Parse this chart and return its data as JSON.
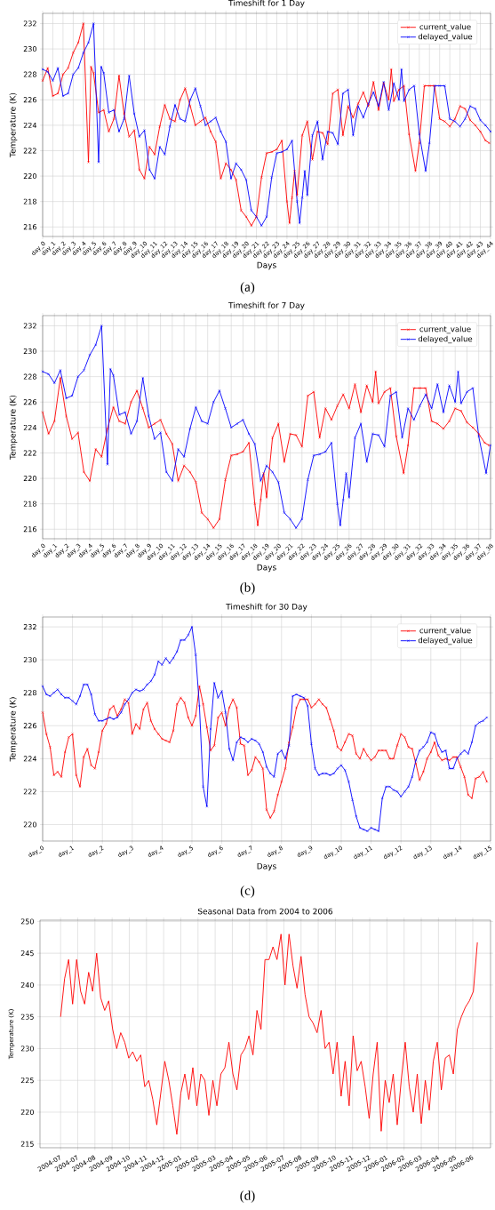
{
  "chart_data": [
    {
      "type": "line",
      "title": "Timeshift for 1 Day",
      "xlabel": "Days",
      "ylabel": "Temperature (K)",
      "grid": true,
      "legend": "top right",
      "marker": "cross",
      "xlim": [
        0,
        44
      ],
      "ylim": [
        215.25,
        232.8
      ],
      "yticks": [
        216,
        218,
        220,
        222,
        224,
        226,
        228,
        230,
        232
      ],
      "xticks": [
        {
          "value": 0,
          "label": "day_0"
        },
        {
          "value": 1,
          "label": "day_1"
        },
        {
          "value": 2,
          "label": "day_2"
        },
        {
          "value": 3,
          "label": "day_3"
        },
        {
          "value": 4,
          "label": "day_4"
        },
        {
          "value": 5,
          "label": "day_5"
        },
        {
          "value": 6,
          "label": "day_6"
        },
        {
          "value": 7,
          "label": "day_7"
        },
        {
          "value": 8,
          "label": "day_8"
        },
        {
          "value": 9,
          "label": "day_9"
        },
        {
          "value": 10,
          "label": "day_10"
        },
        {
          "value": 11,
          "label": "day_11"
        },
        {
          "value": 12,
          "label": "day_12"
        },
        {
          "value": 13,
          "label": "day_13"
        },
        {
          "value": 14,
          "label": "day_14"
        },
        {
          "value": 15,
          "label": "day_15"
        },
        {
          "value": 16,
          "label": "day_16"
        },
        {
          "value": 17,
          "label": "day_17"
        },
        {
          "value": 18,
          "label": "day_18"
        },
        {
          "value": 19,
          "label": "day_19"
        },
        {
          "value": 20,
          "label": "day_20"
        },
        {
          "value": 21,
          "label": "day_21"
        },
        {
          "value": 22,
          "label": "day_22"
        },
        {
          "value": 23,
          "label": "day_23"
        },
        {
          "value": 24,
          "label": "day_24"
        },
        {
          "value": 25,
          "label": "day_25"
        },
        {
          "value": 26,
          "label": "day_26"
        },
        {
          "value": 27,
          "label": "day_27"
        },
        {
          "value": 28,
          "label": "day_28"
        },
        {
          "value": 29,
          "label": "day_29"
        },
        {
          "value": 30,
          "label": "day_30"
        },
        {
          "value": 31,
          "label": "day_31"
        },
        {
          "value": 32,
          "label": "day_32"
        },
        {
          "value": 33,
          "label": "day_33"
        },
        {
          "value": 34,
          "label": "day_34"
        },
        {
          "value": 35,
          "label": "day_35"
        },
        {
          "value": 36,
          "label": "day_36"
        },
        {
          "value": 37,
          "label": "day_37"
        },
        {
          "value": 38,
          "label": "day_38"
        },
        {
          "value": 39,
          "label": "day_39"
        },
        {
          "value": 40,
          "label": "day_40"
        },
        {
          "value": 41,
          "label": "day_41"
        },
        {
          "value": 42,
          "label": "day_42"
        },
        {
          "value": 43,
          "label": "day_43"
        },
        {
          "value": 44,
          "label": "day_44"
        }
      ],
      "series": [
        {
          "name": "current_value",
          "color": "#ff0000",
          "x": [
            0,
            0.5,
            1,
            1.5,
            2,
            2.5,
            3,
            3.5,
            4,
            4.5,
            4.75,
            5,
            5.5,
            6,
            6.5,
            7,
            7.5,
            8,
            8.5,
            9,
            9.5,
            10,
            10.5,
            11,
            11.5,
            12,
            12.5,
            13,
            13.5,
            14,
            14.5,
            15,
            15.5,
            16,
            16.5,
            17,
            17.5,
            18,
            18.5,
            19,
            19.5,
            20,
            20.5,
            21,
            21.5,
            22,
            22.5,
            23,
            23.5,
            24,
            24.25,
            24.5,
            24.75,
            25,
            25.5,
            26,
            26.5,
            27,
            27.5,
            28,
            28.5,
            29,
            29.5,
            30,
            30.5,
            31,
            31.5,
            32,
            32.5,
            33,
            33.5,
            34,
            34.25,
            34.5,
            35,
            35.5,
            36,
            36.625,
            37,
            37.5,
            38,
            38.5,
            39,
            39.5,
            40,
            40.5,
            41,
            41.5,
            42,
            42.5,
            43,
            43.5,
            43.875
          ],
          "values": [
            227.5,
            228.5,
            226.3,
            226.5,
            228.0,
            228.5,
            229.7,
            230.5,
            232.0,
            221.1,
            228.6,
            228.1,
            225.0,
            225.2,
            223.5,
            224.5,
            227.9,
            224.9,
            223.1,
            223.6,
            220.5,
            219.8,
            222.3,
            221.7,
            223.9,
            225.6,
            224.5,
            224.3,
            226.0,
            226.9,
            225.5,
            224.0,
            224.3,
            224.6,
            223.5,
            222.7,
            219.8,
            221.0,
            220.5,
            219.7,
            217.3,
            216.8,
            216.1,
            216.8,
            219.9,
            221.8,
            221.9,
            222.1,
            222.8,
            218.0,
            216.3,
            218.3,
            220.4,
            218.5,
            223.2,
            224.3,
            221.3,
            223.5,
            223.4,
            222.5,
            226.5,
            226.8,
            223.2,
            225.5,
            224.6,
            225.7,
            226.6,
            225.5,
            227.4,
            225.2,
            227.3,
            226.0,
            228.4,
            225.9,
            226.8,
            227.1,
            223.3,
            220.4,
            222.6,
            227.1,
            227.1,
            227.1,
            224.5,
            224.3,
            223.9,
            224.5,
            225.5,
            225.3,
            224.4,
            224.0,
            223.5,
            222.8,
            222.6
          ]
        },
        {
          "name": "delayed_value",
          "color": "#0000ff",
          "x": [
            0,
            0.5,
            1,
            1.5,
            2,
            2.5,
            3,
            3.5,
            4,
            4.5,
            5,
            5.5,
            5.75,
            6,
            6.5,
            7,
            7.5,
            8,
            8.5,
            9,
            9.5,
            10,
            10.5,
            11,
            11.5,
            12,
            12.5,
            13,
            13.5,
            14,
            14.5,
            15,
            15.5,
            16,
            16.5,
            17,
            17.5,
            18,
            18.5,
            19,
            19.5,
            20,
            20.5,
            21,
            21.5,
            22,
            22.5,
            23,
            23.5,
            24,
            24.5,
            25,
            25.25,
            25.5,
            25.75,
            26,
            26.5,
            27,
            27.5,
            28,
            28.5,
            29,
            29.5,
            30,
            30.5,
            31,
            31.5,
            32,
            32.5,
            33,
            33.5,
            34,
            34.5,
            35,
            35.25,
            35.5,
            36,
            36.5,
            37,
            37.625,
            38,
            38.5,
            39,
            39.5,
            40,
            40.5,
            41,
            41.5,
            42,
            42.5,
            43,
            43.5,
            44
          ],
          "values": [
            228.4,
            228.2,
            227.5,
            228.5,
            226.3,
            226.5,
            228.0,
            228.5,
            229.7,
            230.5,
            232.0,
            221.1,
            228.6,
            228.1,
            225.0,
            225.2,
            223.5,
            224.5,
            227.9,
            224.9,
            223.1,
            223.6,
            220.5,
            219.8,
            222.3,
            221.7,
            223.9,
            225.6,
            224.5,
            224.3,
            226.0,
            226.9,
            225.5,
            224.0,
            224.3,
            224.6,
            223.5,
            222.7,
            219.8,
            221.0,
            220.5,
            219.7,
            217.3,
            216.8,
            216.1,
            216.8,
            219.9,
            221.8,
            221.9,
            222.1,
            222.8,
            218.0,
            216.3,
            218.3,
            220.4,
            218.5,
            223.2,
            224.3,
            221.3,
            223.5,
            223.4,
            222.5,
            226.5,
            226.8,
            223.2,
            225.5,
            224.6,
            225.7,
            226.6,
            225.5,
            227.4,
            225.2,
            227.3,
            226.0,
            228.4,
            225.9,
            226.8,
            227.1,
            223.3,
            220.4,
            222.6,
            227.1,
            227.1,
            227.1,
            224.5,
            224.3,
            223.9,
            224.5,
            225.5,
            225.3,
            224.4,
            224.0,
            223.5
          ]
        }
      ],
      "annotations": [
        "(a)"
      ]
    },
    {
      "type": "line",
      "title": "Timeshift for 7 Day",
      "xlabel": "Days",
      "ylabel": "Temperature (K)",
      "grid": true,
      "legend": "top right",
      "marker": "cross",
      "xlim": [
        0,
        38
      ],
      "ylim": [
        215.25,
        232.8
      ],
      "yticks": [
        216,
        218,
        220,
        222,
        224,
        226,
        228,
        230,
        232
      ],
      "xticks": [
        {
          "value": 0,
          "label": "day_0"
        },
        {
          "value": 1,
          "label": "day_1"
        },
        {
          "value": 2,
          "label": "day_2"
        },
        {
          "value": 3,
          "label": "day_3"
        },
        {
          "value": 4,
          "label": "day_4"
        },
        {
          "value": 5,
          "label": "day_5"
        },
        {
          "value": 6,
          "label": "day_6"
        },
        {
          "value": 7,
          "label": "day_7"
        },
        {
          "value": 8,
          "label": "day_8"
        },
        {
          "value": 9,
          "label": "day_9"
        },
        {
          "value": 10,
          "label": "day_10"
        },
        {
          "value": 11,
          "label": "day_11"
        },
        {
          "value": 12,
          "label": "day_12"
        },
        {
          "value": 13,
          "label": "day_13"
        },
        {
          "value": 14,
          "label": "day_14"
        },
        {
          "value": 15,
          "label": "day_15"
        },
        {
          "value": 16,
          "label": "day_16"
        },
        {
          "value": 17,
          "label": "day_17"
        },
        {
          "value": 18,
          "label": "day_18"
        },
        {
          "value": 19,
          "label": "day_19"
        },
        {
          "value": 20,
          "label": "day_20"
        },
        {
          "value": 21,
          "label": "day_21"
        },
        {
          "value": 22,
          "label": "day_22"
        },
        {
          "value": 23,
          "label": "day_23"
        },
        {
          "value": 24,
          "label": "day_24"
        },
        {
          "value": 25,
          "label": "day_25"
        },
        {
          "value": 26,
          "label": "day_26"
        },
        {
          "value": 27,
          "label": "day_27"
        },
        {
          "value": 28,
          "label": "day_28"
        },
        {
          "value": 29,
          "label": "day_29"
        },
        {
          "value": 30,
          "label": "day_30"
        },
        {
          "value": 31,
          "label": "day_31"
        },
        {
          "value": 32,
          "label": "day_32"
        },
        {
          "value": 33,
          "label": "day_33"
        },
        {
          "value": 34,
          "label": "day_34"
        },
        {
          "value": 35,
          "label": "day_35"
        },
        {
          "value": 36,
          "label": "day_36"
        },
        {
          "value": 37,
          "label": "day_37"
        },
        {
          "value": 38,
          "label": "day_38"
        }
      ],
      "series": [
        {
          "name": "current_value",
          "color": "#ff0000",
          "x": [
            0,
            0.5,
            1,
            1.5,
            2,
            2.5,
            3,
            3.5,
            4,
            4.5,
            5,
            5.5,
            6,
            6.5,
            7,
            7.5,
            8,
            8.5,
            9,
            9.5,
            10,
            10.5,
            11,
            11.5,
            12,
            12.5,
            13,
            13.5,
            14,
            14.5,
            15,
            15.5,
            16,
            16.5,
            17,
            17.5,
            18,
            18.25,
            18.5,
            18.75,
            19,
            19.5,
            20,
            20.5,
            21,
            21.5,
            22,
            22.5,
            23,
            23.5,
            24,
            24.5,
            25,
            25.5,
            26,
            26.5,
            27,
            27.5,
            28,
            28.25,
            28.5,
            29,
            29.5,
            30,
            30.625,
            31,
            31.5,
            32,
            32.5,
            33,
            33.5,
            34,
            34.5,
            35,
            35.5,
            36,
            36.5,
            37,
            37.5,
            37.875
          ],
          "values": [
            225.2,
            223.5,
            224.5,
            227.9,
            224.9,
            223.1,
            223.6,
            220.5,
            219.8,
            222.3,
            221.7,
            223.9,
            225.6,
            224.5,
            224.3,
            226.0,
            226.9,
            225.5,
            224.0,
            224.3,
            224.6,
            223.5,
            222.7,
            219.8,
            221.0,
            220.5,
            219.7,
            217.3,
            216.8,
            216.1,
            216.8,
            219.9,
            221.8,
            221.9,
            222.1,
            222.8,
            218.0,
            216.3,
            218.3,
            220.4,
            218.5,
            223.2,
            224.3,
            221.3,
            223.5,
            223.4,
            222.5,
            226.5,
            226.8,
            223.2,
            225.5,
            224.6,
            225.7,
            226.6,
            225.5,
            227.4,
            225.2,
            227.3,
            226.0,
            228.4,
            225.9,
            226.8,
            227.1,
            223.3,
            220.4,
            222.6,
            227.1,
            227.1,
            227.1,
            224.5,
            224.3,
            223.9,
            224.5,
            225.5,
            225.3,
            224.4,
            224.0,
            223.5,
            222.8,
            222.6
          ]
        },
        {
          "name": "delayed_value",
          "color": "#0000ff",
          "x": [
            0,
            0.5,
            1,
            1.5,
            2,
            2.5,
            3,
            3.5,
            4,
            4.5,
            5,
            5.5,
            5.75,
            6,
            6.5,
            7,
            7.5,
            8,
            8.5,
            9,
            9.5,
            10,
            10.5,
            11,
            11.5,
            12,
            12.5,
            13,
            13.5,
            14,
            14.5,
            15,
            15.5,
            16,
            16.5,
            17,
            17.5,
            18,
            18.5,
            19,
            19.5,
            20,
            20.5,
            21,
            21.5,
            22,
            22.5,
            23,
            23.5,
            24,
            24.5,
            25,
            25.25,
            25.5,
            25.75,
            26,
            26.5,
            27,
            27.5,
            28,
            28.5,
            29,
            29.5,
            30,
            30.5,
            31,
            31.5,
            32,
            32.5,
            33,
            33.5,
            34,
            34.5,
            35,
            35.25,
            35.5,
            36,
            36.5,
            37,
            37.625,
            38
          ],
          "values": [
            228.4,
            228.2,
            227.5,
            228.5,
            226.3,
            226.5,
            228.0,
            228.5,
            229.7,
            230.5,
            232.0,
            221.1,
            228.6,
            228.1,
            225.0,
            225.2,
            223.5,
            224.5,
            227.9,
            224.9,
            223.1,
            223.6,
            220.5,
            219.8,
            222.3,
            221.7,
            223.9,
            225.6,
            224.5,
            224.3,
            226.0,
            226.9,
            225.5,
            224.0,
            224.3,
            224.6,
            223.5,
            222.7,
            219.8,
            221.0,
            220.5,
            219.7,
            217.3,
            216.8,
            216.1,
            216.8,
            219.9,
            221.8,
            221.9,
            222.1,
            222.8,
            218.0,
            216.3,
            218.3,
            220.4,
            218.5,
            223.2,
            224.3,
            221.3,
            223.5,
            223.4,
            222.5,
            226.5,
            226.8,
            223.2,
            225.5,
            224.6,
            225.7,
            226.6,
            225.5,
            227.4,
            225.2,
            227.3,
            226.0,
            228.4,
            225.9,
            226.8,
            227.1,
            223.3,
            220.4,
            222.6
          ]
        }
      ],
      "annotations": [
        "(b)"
      ]
    },
    {
      "type": "line",
      "title": "Timeshift for 30 Day",
      "xlabel": "Days",
      "ylabel": "Temperature (K)",
      "grid": true,
      "legend": "top right",
      "marker": "cross",
      "xlim": [
        0,
        15
      ],
      "ylim": [
        219.0,
        232.6
      ],
      "yticks": [
        220,
        222,
        224,
        226,
        228,
        230,
        232
      ],
      "xticks": [
        {
          "value": 0,
          "label": "day_0"
        },
        {
          "value": 1,
          "label": "day_1"
        },
        {
          "value": 2,
          "label": "day_2"
        },
        {
          "value": 3,
          "label": "day_3"
        },
        {
          "value": 4,
          "label": "day_4"
        },
        {
          "value": 5,
          "label": "day_5"
        },
        {
          "value": 6,
          "label": "day_6"
        },
        {
          "value": 7,
          "label": "day_7"
        },
        {
          "value": 8,
          "label": "day_8"
        },
        {
          "value": 9,
          "label": "day_9"
        },
        {
          "value": 10,
          "label": "day_10"
        },
        {
          "value": 11,
          "label": "day_11"
        },
        {
          "value": 12,
          "label": "day_12"
        },
        {
          "value": 13,
          "label": "day_13"
        },
        {
          "value": 14,
          "label": "day_14"
        },
        {
          "value": 15,
          "label": "day_15"
        }
      ],
      "x": [
        0,
        0.125,
        0.25,
        0.375,
        0.5,
        0.625,
        0.75,
        0.875,
        1,
        1.125,
        1.25,
        1.375,
        1.5,
        1.625,
        1.75,
        1.875,
        2,
        2.125,
        2.25,
        2.375,
        2.5,
        2.625,
        2.75,
        2.875,
        3,
        3.125,
        3.25,
        3.375,
        3.5,
        3.625,
        3.75,
        3.875,
        4,
        4.125,
        4.25,
        4.375,
        4.5,
        4.625,
        4.75,
        4.875,
        5,
        5.125,
        5.25,
        5.375,
        5.5,
        5.625,
        5.75,
        5.875,
        6,
        6.125,
        6.25,
        6.375,
        6.5,
        6.625,
        6.75,
        6.875,
        7,
        7.125,
        7.25,
        7.375,
        7.5,
        7.625,
        7.75,
        7.875,
        8,
        8.125,
        8.25,
        8.375,
        8.5,
        8.625,
        8.75,
        8.875,
        9,
        9.125,
        9.25,
        9.375,
        9.5,
        9.625,
        9.75,
        9.875,
        10,
        10.125,
        10.25,
        10.375,
        10.5,
        10.625,
        10.75,
        10.875,
        11,
        11.125,
        11.25,
        11.375,
        11.5,
        11.625,
        11.75,
        11.875,
        12,
        12.125,
        12.25,
        12.375,
        12.5,
        12.625,
        12.75,
        12.875,
        13,
        13.125,
        13.25,
        13.375,
        13.5,
        13.625,
        13.75,
        13.875,
        14,
        14.125,
        14.25,
        14.375,
        14.5,
        14.625,
        14.75,
        14.875
      ],
      "series": [
        {
          "name": "current_value",
          "color": "#ff0000",
          "values": [
            226.8,
            225.5,
            224.7,
            223.0,
            223.2,
            222.9,
            224.4,
            225.3,
            225.5,
            223.0,
            222.3,
            224.1,
            224.6,
            223.6,
            223.4,
            224.4,
            225.7,
            226.1,
            227.0,
            227.2,
            226.6,
            227.0,
            227.6,
            227.4,
            225.5,
            226.1,
            225.8,
            227.0,
            227.4,
            226.3,
            225.8,
            225.5,
            225.2,
            225.1,
            225.0,
            225.7,
            227.3,
            227.7,
            227.4,
            226.5,
            226.0,
            226.6,
            228.4,
            227.3,
            225.9,
            224.5,
            224.8,
            226.5,
            226.8,
            226.0,
            227.1,
            227.6,
            227.1,
            224.9,
            224.8,
            223.0,
            223.3,
            224.1,
            223.8,
            223.4,
            220.9,
            220.4,
            220.8,
            221.8,
            222.6,
            223.4,
            225.0,
            225.9,
            227.1,
            227.6,
            227.6,
            227.6,
            227.1,
            227.3,
            227.6,
            227.3,
            227.1,
            226.4,
            225.7,
            224.7,
            224.5,
            225.0,
            225.5,
            225.4,
            224.3,
            224.0,
            224.6,
            224.2,
            223.9,
            224.1,
            224.5,
            224.5,
            224.5,
            224.0,
            224.0,
            224.8,
            225.5,
            225.3,
            224.7,
            224.6,
            223.7,
            222.7,
            223.2,
            224.0,
            224.4,
            225.0,
            224.2,
            223.9,
            224.0,
            223.9,
            224.1,
            224.1,
            223.5,
            222.9,
            221.8,
            221.6,
            222.8,
            222.9,
            223.2,
            222.6
          ]
        },
        {
          "name": "delayed_value",
          "color": "#0000ff",
          "values": [
            228.4,
            227.9,
            227.8,
            228.0,
            228.2,
            227.9,
            227.7,
            227.7,
            227.5,
            227.3,
            227.8,
            228.5,
            228.5,
            227.9,
            226.7,
            226.3,
            226.3,
            226.4,
            226.5,
            226.4,
            226.5,
            226.8,
            227.3,
            227.6,
            228.0,
            228.2,
            228.1,
            228.2,
            228.5,
            228.7,
            229.1,
            229.9,
            229.7,
            230.1,
            229.8,
            230.1,
            230.5,
            231.2,
            231.2,
            231.5,
            232.0,
            230.3,
            227.2,
            222.3,
            221.1,
            225.8,
            228.6,
            227.7,
            228.1,
            226.8,
            224.6,
            223.9,
            225.0,
            225.3,
            225.2,
            225.0,
            225.2,
            225.1,
            224.9,
            224.4,
            223.5,
            223.1,
            222.9,
            224.3,
            224.5,
            224.0,
            224.8,
            227.8,
            227.9,
            227.8,
            227.7,
            227.2,
            224.9,
            223.4,
            223.0,
            223.1,
            223.1,
            223.0,
            223.1,
            223.4,
            223.6,
            223.3,
            222.6,
            221.5,
            220.5,
            219.8,
            219.7,
            219.6,
            219.8,
            219.7,
            219.6,
            221.6,
            222.3,
            222.3,
            222.1,
            222.0,
            221.7,
            222.0,
            222.3,
            222.9,
            223.9,
            224.5,
            224.7,
            225.0,
            225.6,
            225.5,
            224.8,
            224.4,
            224.5,
            223.4,
            223.4,
            224.0,
            224.3,
            224.5,
            224.3,
            225.0,
            226.0,
            226.2,
            226.3,
            226.5
          ]
        }
      ],
      "annotations": [
        "(c)"
      ]
    },
    {
      "type": "line",
      "title": "Seasonal Data from 2004 to 2006",
      "ylabel": "Temperature (K)",
      "grid": true,
      "xlim": [
        "2004-05-26",
        "2006-07-22"
      ],
      "ylim": [
        214.4,
        250.2
      ],
      "yticks": [
        215,
        220,
        225,
        230,
        235,
        240,
        245,
        250
      ],
      "xticks": [
        {
          "value": "2004-07-01",
          "label": "2004-07"
        },
        {
          "value": "2004-07-31",
          "label": "2004-07"
        },
        {
          "value": "2004-08-30",
          "label": "2004-08"
        },
        {
          "value": "2004-09-29",
          "label": "2004-09"
        },
        {
          "value": "2004-10-29",
          "label": "2004-10"
        },
        {
          "value": "2004-11-28",
          "label": "2004-11"
        },
        {
          "value": "2004-12-28",
          "label": "2004-12"
        },
        {
          "value": "2005-01-27",
          "label": "2005-01"
        },
        {
          "value": "2005-02-26",
          "label": "2005-02"
        },
        {
          "value": "2005-03-28",
          "label": "2005-03"
        },
        {
          "value": "2005-04-27",
          "label": "2005-04"
        },
        {
          "value": "2005-05-27",
          "label": "2005-05"
        },
        {
          "value": "2005-06-26",
          "label": "2005-06"
        },
        {
          "value": "2005-07-26",
          "label": "2005-07"
        },
        {
          "value": "2005-08-25",
          "label": "2005-08"
        },
        {
          "value": "2005-09-24",
          "label": "2005-09"
        },
        {
          "value": "2005-10-24",
          "label": "2005-10"
        },
        {
          "value": "2005-11-23",
          "label": "2005-11"
        },
        {
          "value": "2005-12-23",
          "label": "2005-12"
        },
        {
          "value": "2006-01-22",
          "label": "2006-01"
        },
        {
          "value": "2006-02-21",
          "label": "2006-02"
        },
        {
          "value": "2006-03-23",
          "label": "2006-03"
        },
        {
          "value": "2006-04-22",
          "label": "2006-04"
        },
        {
          "value": "2006-05-22",
          "label": "2006-05"
        },
        {
          "value": "2006-06-21",
          "label": "2006-06"
        }
      ],
      "x": [
        "2004-07-01",
        "2004-07-08",
        "2004-07-15",
        "2004-07-22",
        "2004-07-29",
        "2004-08-05",
        "2004-08-12",
        "2004-08-19",
        "2004-08-26",
        "2004-09-02",
        "2004-09-09",
        "2004-09-16",
        "2004-09-23",
        "2004-09-30",
        "2004-10-07",
        "2004-10-14",
        "2004-10-21",
        "2004-10-28",
        "2004-11-04",
        "2004-11-11",
        "2004-11-18",
        "2004-11-25",
        "2004-12-02",
        "2004-12-09",
        "2004-12-16",
        "2004-12-23",
        "2004-12-30",
        "2005-01-06",
        "2005-01-13",
        "2005-01-20",
        "2005-01-27",
        "2005-02-03",
        "2005-02-10",
        "2005-02-17",
        "2005-02-24",
        "2005-03-03",
        "2005-03-10",
        "2005-03-17",
        "2005-03-24",
        "2005-03-31",
        "2005-04-07",
        "2005-04-14",
        "2005-04-21",
        "2005-04-28",
        "2005-05-05",
        "2005-05-12",
        "2005-05-19",
        "2005-05-26",
        "2005-06-02",
        "2005-06-09",
        "2005-06-16",
        "2005-06-23",
        "2005-06-30",
        "2005-07-07",
        "2005-07-14",
        "2005-07-21",
        "2005-07-28",
        "2005-08-04",
        "2005-08-11",
        "2005-08-18",
        "2005-08-25",
        "2005-09-01",
        "2005-09-08",
        "2005-09-15",
        "2005-09-22",
        "2005-09-29",
        "2005-10-06",
        "2005-10-13",
        "2005-10-20",
        "2005-10-27",
        "2005-11-03",
        "2005-11-10",
        "2005-11-17",
        "2005-11-24",
        "2005-12-01",
        "2005-12-08",
        "2005-12-15",
        "2005-12-22",
        "2005-12-29",
        "2006-01-05",
        "2006-01-12",
        "2006-01-19",
        "2006-01-26",
        "2006-02-02",
        "2006-02-09",
        "2006-02-16",
        "2006-02-23",
        "2006-03-02",
        "2006-03-09",
        "2006-03-16",
        "2006-03-23",
        "2006-03-30",
        "2006-04-06",
        "2006-04-13",
        "2006-04-20",
        "2006-04-27",
        "2006-05-04",
        "2006-05-11",
        "2006-05-18",
        "2006-05-25",
        "2006-06-01",
        "2006-06-08",
        "2006-06-15",
        "2006-06-22",
        "2006-06-29"
      ],
      "series": [
        {
          "color": "#ff0000",
          "values": [
            235,
            241,
            244,
            237,
            244,
            239,
            237,
            242,
            239,
            245,
            238,
            236,
            237.5,
            233,
            230,
            232.5,
            231,
            228.5,
            229.5,
            228,
            229,
            224,
            225,
            222,
            218,
            223,
            228,
            225,
            221,
            216.5,
            223,
            226,
            222,
            227,
            221,
            226,
            225,
            219.5,
            225,
            221,
            226,
            227,
            231,
            226,
            223.5,
            229,
            230,
            232,
            229,
            236,
            233,
            244,
            244,
            246,
            244,
            248,
            240,
            248,
            243,
            239.5,
            244.5,
            238.5,
            235,
            234,
            232.5,
            236,
            230,
            231,
            226,
            231,
            222.5,
            228,
            221,
            232,
            226.5,
            228,
            224,
            219,
            226,
            231,
            217,
            225,
            221.5,
            226,
            218,
            225,
            231,
            224,
            220,
            226,
            218.2,
            225,
            220.3,
            228,
            231,
            223.5,
            228.5,
            229,
            226,
            233,
            235,
            236.5,
            237.5,
            239,
            246.7
          ]
        }
      ],
      "annotations": [
        "(d)"
      ]
    }
  ]
}
